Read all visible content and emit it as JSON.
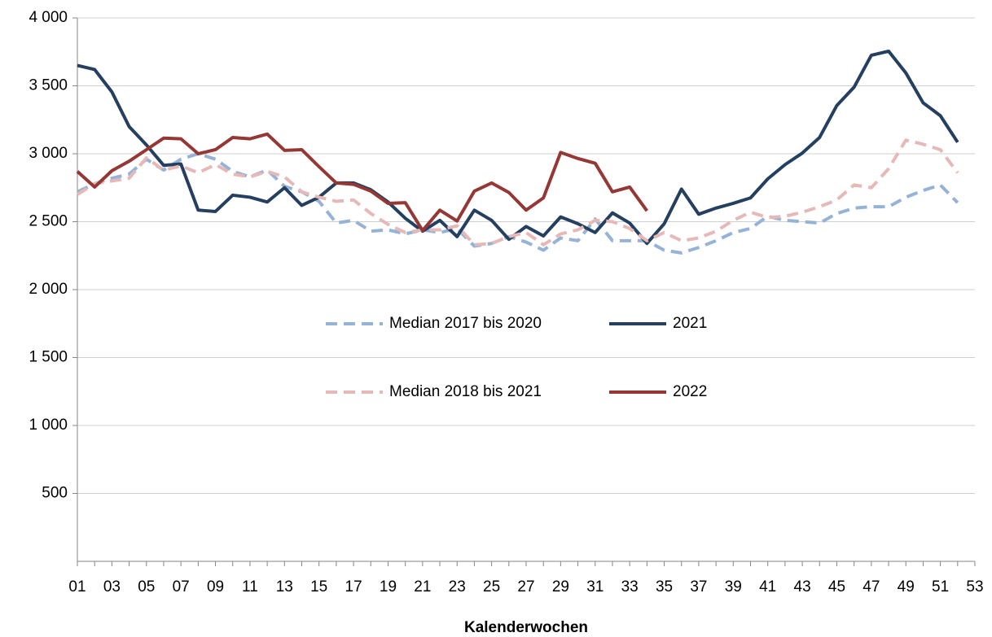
{
  "chart_data": {
    "type": "line",
    "x_label": "Kalenderwochen",
    "categories": [
      "01",
      null,
      "03",
      null,
      "05",
      null,
      "07",
      null,
      "09",
      null,
      "11",
      null,
      "13",
      null,
      "15",
      null,
      "17",
      null,
      "19",
      null,
      "21",
      null,
      "23",
      null,
      "25",
      null,
      "27",
      null,
      "29",
      null,
      "31",
      null,
      "33",
      null,
      "35",
      null,
      "37",
      null,
      "39",
      null,
      "41",
      null,
      "43",
      null,
      "45",
      null,
      "47",
      null,
      "49",
      null,
      "51",
      null,
      "53"
    ],
    "ylim": [
      0,
      4000
    ],
    "yticks": [
      500,
      {
        "value": 1000,
        "label": "1 000"
      },
      {
        "value": 1500,
        "label": "1 500"
      },
      {
        "value": 2000,
        "label": "2 000"
      },
      {
        "value": 2500,
        "label": "2 500"
      },
      {
        "value": 3000,
        "label": "3 000"
      },
      {
        "value": 3500,
        "label": "3 500"
      },
      {
        "value": 4000,
        "label": "4 000"
      }
    ],
    "grid": true,
    "series": [
      {
        "name": "Median 2017 bis 2020",
        "color": "#95b3d7",
        "dashed": true,
        "values": [
          2720,
          2780,
          2820,
          2850,
          2960,
          2880,
          2960,
          3000,
          2960,
          2870,
          2830,
          2880,
          2760,
          2720,
          2650,
          2490,
          2510,
          2430,
          2440,
          2410,
          2440,
          2420,
          2450,
          2320,
          2340,
          2390,
          2350,
          2290,
          2380,
          2360,
          2520,
          2360,
          2360,
          2360,
          2290,
          2270,
          2310,
          2360,
          2420,
          2450,
          2540,
          2510,
          2500,
          2490,
          2560,
          2600,
          2610,
          2610,
          2680,
          2730,
          2770,
          2640,
          null
        ]
      },
      {
        "name": "2021",
        "color": "#243f60",
        "dashed": false,
        "values": [
          3650,
          3620,
          3455,
          3200,
          3065,
          2915,
          2925,
          2585,
          2575,
          2695,
          2680,
          2645,
          2750,
          2620,
          2680,
          2785,
          2785,
          2735,
          2645,
          2525,
          2430,
          2510,
          2390,
          2585,
          2510,
          2370,
          2465,
          2395,
          2535,
          2485,
          2420,
          2565,
          2490,
          2340,
          2485,
          2740,
          2555,
          2600,
          2635,
          2675,
          2815,
          2920,
          3005,
          3120,
          3355,
          3490,
          3725,
          3755,
          3595,
          3375,
          3280,
          3085,
          null
        ]
      },
      {
        "name": "Median 2018 bis 2021",
        "color": "#e6b9b8",
        "dashed": true,
        "values": [
          2700,
          2780,
          2800,
          2820,
          2970,
          2880,
          2910,
          2860,
          2920,
          2850,
          2830,
          2870,
          2830,
          2720,
          2680,
          2650,
          2660,
          2560,
          2480,
          2420,
          2440,
          2440,
          2470,
          2330,
          2340,
          2390,
          2420,
          2330,
          2410,
          2440,
          2510,
          2500,
          2450,
          2360,
          2420,
          2360,
          2380,
          2430,
          2510,
          2570,
          2530,
          2540,
          2570,
          2610,
          2660,
          2770,
          2750,
          2890,
          3100,
          3070,
          3030,
          2860,
          null
        ]
      },
      {
        "name": "2022",
        "color": "#953735",
        "dashed": false,
        "values": [
          2870,
          2755,
          2875,
          2945,
          3030,
          3115,
          3110,
          3000,
          3030,
          3120,
          3110,
          3145,
          3025,
          3030,
          2905,
          2785,
          2775,
          2725,
          2635,
          2640,
          2435,
          2585,
          2505,
          2725,
          2785,
          2715,
          2585,
          2675,
          3010,
          2965,
          2930,
          2720,
          2755,
          2580,
          null,
          null,
          null,
          null,
          null,
          null,
          null,
          null,
          null,
          null,
          null,
          null,
          null,
          null,
          null,
          null,
          null,
          null,
          null
        ]
      }
    ]
  }
}
